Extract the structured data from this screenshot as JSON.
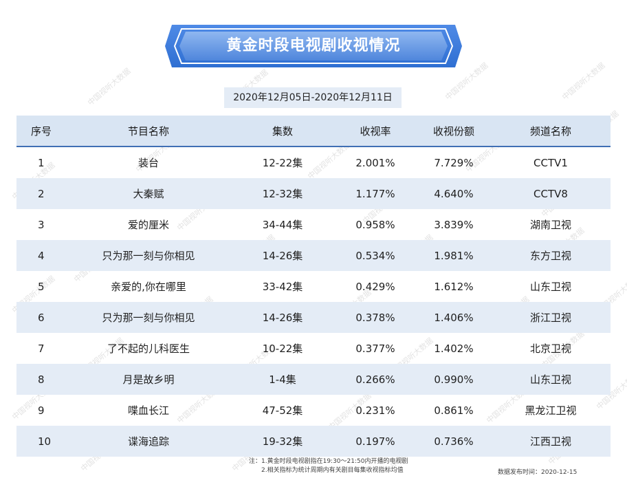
{
  "title": "黄金时段电视剧收视情况",
  "date_range": "2020年12月05日-2020年12月11日",
  "table": {
    "headers": [
      "序号",
      "节目名称",
      "集数",
      "收视率",
      "收视份额",
      "频道名称"
    ],
    "rows": [
      [
        "1",
        "装台",
        "12-22集",
        "2.001%",
        "7.729%",
        "CCTV1"
      ],
      [
        "2",
        "大秦赋",
        "12-32集",
        "1.177%",
        "4.640%",
        "CCTV8"
      ],
      [
        "3",
        "爱的厘米",
        "34-44集",
        "0.958%",
        "3.839%",
        "湖南卫视"
      ],
      [
        "4",
        "只为那一刻与你相见",
        "14-26集",
        "0.534%",
        "1.981%",
        "东方卫视"
      ],
      [
        "5",
        "亲爱的,你在哪里",
        "33-42集",
        "0.429%",
        "1.612%",
        "山东卫视"
      ],
      [
        "6",
        "只为那一刻与你相见",
        "14-26集",
        "0.378%",
        "1.406%",
        "浙江卫视"
      ],
      [
        "7",
        "了不起的儿科医生",
        "10-22集",
        "0.377%",
        "1.402%",
        "北京卫视"
      ],
      [
        "8",
        "月是故乡明",
        "1-4集",
        "0.266%",
        "0.990%",
        "山东卫视"
      ],
      [
        "9",
        "喋血长江",
        "47-52集",
        "0.231%",
        "0.861%",
        "黑龙江卫视"
      ],
      [
        "10",
        "谍海追踪",
        "19-32集",
        "0.197%",
        "0.736%",
        "江西卫视"
      ]
    ]
  },
  "notes": {
    "line1": "注：1.黄金时段电视剧指在19:30～21:50内开播的电视剧",
    "line2": "2.相关指标为统计周期内有关剧目每集收视指标均值"
  },
  "release_date": "数据发布时间：2020-12-15",
  "watermark_text": "中国视听大数据",
  "colors": {
    "banner_dark": "#2f6fd2",
    "banner_light": "#5b95e8",
    "header_bg": "#d9e5f3",
    "stripe_bg": "#e4ecf6",
    "header_rule": "#3f6fb4"
  }
}
